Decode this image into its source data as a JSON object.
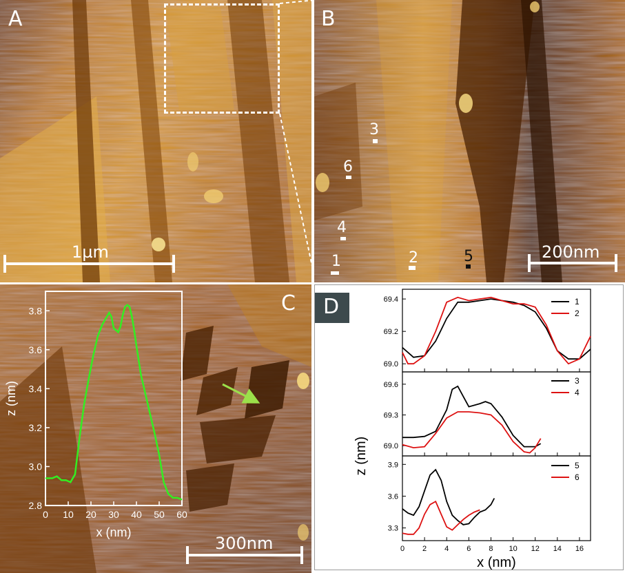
{
  "panels": {
    "A": {
      "label": "A",
      "scale": "1µm"
    },
    "B": {
      "label": "B",
      "scale": "200nm",
      "markers": [
        "1",
        "2",
        "3",
        "4",
        "5",
        "6"
      ]
    },
    "C": {
      "label": "C",
      "scale": "300nm"
    },
    "D": {
      "label": "D"
    }
  },
  "colors": {
    "afm_dark": "#3b1c00",
    "afm_mid": "#a8660f",
    "afm_light": "#f0c860",
    "profile_green": "#33ee22",
    "black_series": "#000000",
    "red_series": "#dd1111",
    "badge": "#3d4a4d"
  },
  "chart_data": [
    {
      "type": "line",
      "id": "C-inset",
      "xlabel": "x (nm)",
      "ylabel": "z (nm)",
      "xlim": [
        0,
        60
      ],
      "ylim": [
        2.8,
        3.9
      ],
      "xticks": [
        "0",
        "10",
        "20",
        "30",
        "40",
        "50",
        "60"
      ],
      "yticks": [
        "2.8",
        "3.0",
        "3.2",
        "3.4",
        "3.6",
        "3.8"
      ],
      "series": [
        {
          "color": "#33ee22",
          "x": [
            0,
            3,
            5,
            7,
            9,
            11,
            13,
            15,
            17,
            19,
            21,
            23,
            25,
            27,
            28,
            29,
            30,
            31,
            32,
            33,
            34,
            35,
            36,
            37,
            38,
            39,
            40,
            42,
            44,
            46,
            48,
            50,
            52,
            54,
            56,
            58,
            60
          ],
          "y": [
            2.94,
            2.94,
            2.95,
            2.93,
            2.93,
            2.92,
            2.96,
            3.15,
            3.32,
            3.45,
            3.57,
            3.67,
            3.73,
            3.77,
            3.79,
            3.77,
            3.71,
            3.7,
            3.69,
            3.72,
            3.78,
            3.82,
            3.83,
            3.82,
            3.77,
            3.7,
            3.62,
            3.47,
            3.37,
            3.27,
            3.17,
            3.06,
            2.92,
            2.86,
            2.84,
            2.84,
            2.83
          ]
        }
      ]
    },
    {
      "type": "line",
      "id": "D-top",
      "xlim": [
        0,
        17
      ],
      "ylim": [
        68.95,
        69.46
      ],
      "yticks": [
        "69.0",
        "69.2",
        "69.4"
      ],
      "series": [
        {
          "name": "1",
          "color": "#000000",
          "x": [
            0,
            1,
            2,
            3,
            4,
            5,
            6,
            7,
            8,
            9,
            10,
            11,
            12,
            13,
            14,
            15,
            16,
            17
          ],
          "y": [
            69.1,
            69.04,
            69.05,
            69.14,
            69.28,
            69.38,
            69.38,
            69.39,
            69.4,
            69.39,
            69.38,
            69.36,
            69.32,
            69.22,
            69.08,
            69.03,
            69.03,
            69.09
          ]
        },
        {
          "name": "2",
          "color": "#dd1111",
          "x": [
            0,
            0.5,
            1,
            2,
            3,
            4,
            5,
            6,
            7,
            8,
            9,
            10,
            11,
            12,
            13,
            14,
            15,
            16,
            17
          ],
          "y": [
            69.07,
            69.0,
            69.0,
            69.05,
            69.2,
            69.38,
            69.41,
            69.39,
            69.4,
            69.41,
            69.39,
            69.37,
            69.37,
            69.35,
            69.24,
            69.08,
            69.0,
            69.03,
            69.17
          ]
        }
      ]
    },
    {
      "type": "line",
      "id": "D-mid",
      "xlim": [
        0,
        17
      ],
      "ylim": [
        68.9,
        69.72
      ],
      "yticks": [
        "69.0",
        "69.3",
        "69.6"
      ],
      "series": [
        {
          "name": "3",
          "color": "#000000",
          "x": [
            0,
            1,
            2,
            3,
            4,
            4.5,
            5,
            5.5,
            6,
            7,
            7.5,
            8,
            9,
            10,
            11,
            12,
            12.5
          ],
          "y": [
            69.08,
            69.08,
            69.09,
            69.14,
            69.35,
            69.55,
            69.58,
            69.48,
            69.38,
            69.41,
            69.43,
            69.41,
            69.28,
            69.1,
            68.99,
            68.99,
            69.02
          ]
        },
        {
          "name": "4",
          "color": "#dd1111",
          "x": [
            0,
            1,
            2,
            3,
            4,
            5,
            6,
            7,
            8,
            9,
            10,
            11,
            11.5,
            12,
            12.5
          ],
          "y": [
            69.01,
            68.98,
            68.99,
            69.12,
            69.27,
            69.33,
            69.33,
            69.32,
            69.3,
            69.2,
            69.04,
            68.94,
            68.93,
            68.98,
            69.07
          ]
        }
      ]
    },
    {
      "type": "line",
      "id": "D-bottom",
      "xlim": [
        0,
        17
      ],
      "ylim": [
        3.18,
        3.98
      ],
      "yticks": [
        "3.3",
        "3.6",
        "3.9"
      ],
      "xticks": [
        "0",
        "2",
        "4",
        "6",
        "8",
        "10",
        "12",
        "14",
        "16"
      ],
      "xlabel": "x (nm)",
      "ylabel": "z (nm)",
      "series": [
        {
          "name": "5",
          "color": "#000000",
          "x": [
            0,
            0.5,
            1,
            1.5,
            2,
            2.5,
            3,
            3.5,
            4,
            4.5,
            5,
            5.5,
            6,
            6.5,
            7,
            7.5,
            8,
            8.3
          ],
          "y": [
            3.48,
            3.44,
            3.42,
            3.5,
            3.65,
            3.8,
            3.85,
            3.75,
            3.55,
            3.42,
            3.37,
            3.33,
            3.34,
            3.4,
            3.45,
            3.47,
            3.52,
            3.58
          ]
        },
        {
          "name": "6",
          "color": "#dd1111",
          "x": [
            0,
            0.5,
            1,
            1.5,
            2,
            2.5,
            3,
            3.5,
            4,
            4.5,
            5,
            5.5,
            6,
            6.5,
            7
          ],
          "y": [
            3.25,
            3.24,
            3.24,
            3.3,
            3.43,
            3.52,
            3.55,
            3.43,
            3.31,
            3.28,
            3.33,
            3.38,
            3.42,
            3.45,
            3.47
          ]
        }
      ]
    }
  ]
}
